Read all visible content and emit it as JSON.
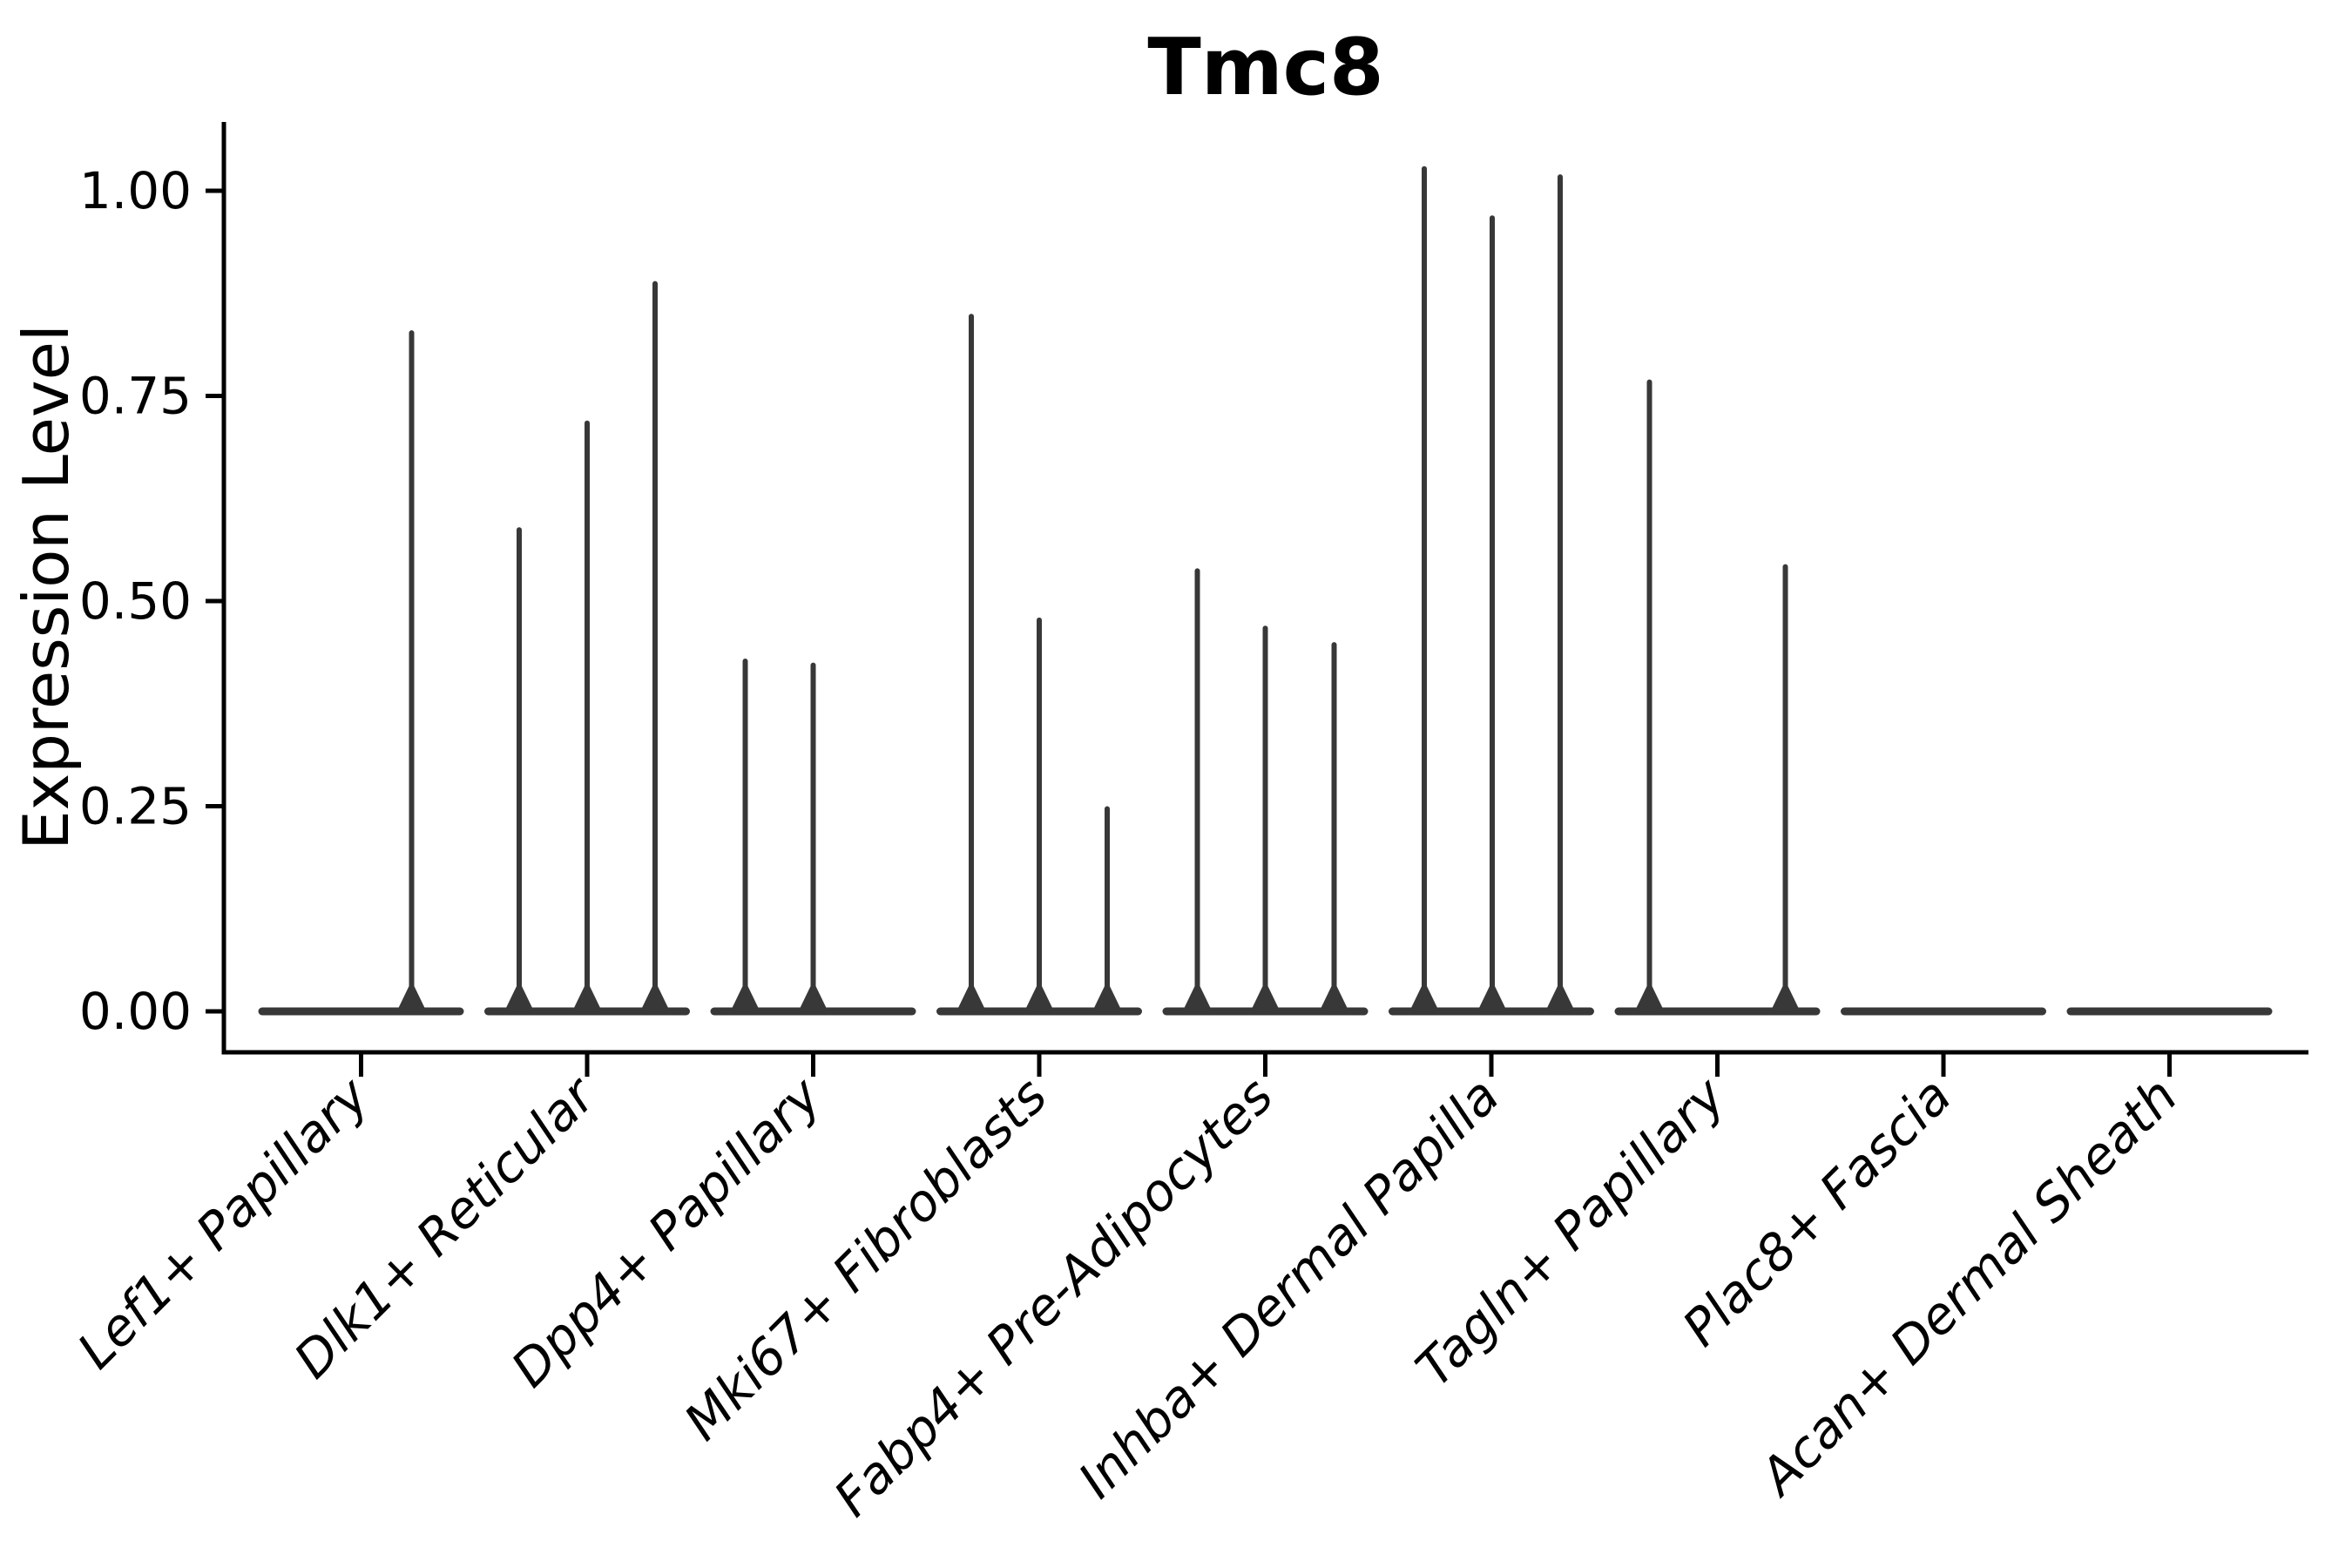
{
  "figure": {
    "title": "Tmc8",
    "y_axis_title": "Expression Level"
  },
  "chart_data": {
    "type": "violin",
    "title": "Tmc8",
    "xlabel": "",
    "ylabel": "Expression Level",
    "ylim": [
      -0.05,
      1.08
    ],
    "yticks": [
      0,
      0.25,
      0.5,
      0.75,
      1.0
    ],
    "ytick_labels": [
      "0.00",
      "0.25",
      "0.50",
      "0.75",
      "1.00"
    ],
    "grid": false,
    "legend": "none",
    "x_axis_style": {
      "label_rotation_deg": 45,
      "label_style": "italic"
    },
    "categories": [
      "Lef1+ Papillary",
      "Dlk1+ Reticular",
      "Dpp4+ Papillary",
      "Mki67+ Fibroblasts",
      "Fabp4+ Pre-Adipocytes",
      "Inhba+ Dermal Papilla",
      "Tagln+ Papillary",
      "Plac8+ Fascia",
      "Acan+ Dermal Sheath"
    ],
    "violins": [
      {
        "category": "Lef1+ Papillary",
        "baseline_value": 0,
        "spikes": [
          {
            "dx": 58,
            "max": 0.83
          }
        ]
      },
      {
        "category": "Dlk1+ Reticular",
        "baseline_value": 0,
        "spikes": [
          {
            "dx": -78,
            "max": 0.59
          },
          {
            "dx": 0,
            "max": 0.72
          },
          {
            "dx": 78,
            "max": 0.89
          }
        ]
      },
      {
        "category": "Dpp4+ Papillary",
        "baseline_value": 0,
        "spikes": [
          {
            "dx": -78,
            "max": 0.43
          },
          {
            "dx": 0,
            "max": 0.425
          }
        ]
      },
      {
        "category": "Mki67+ Fibroblasts",
        "baseline_value": 0,
        "spikes": [
          {
            "dx": -78,
            "max": 0.85
          },
          {
            "dx": 0,
            "max": 0.48
          },
          {
            "dx": 78,
            "max": 0.25
          }
        ]
      },
      {
        "category": "Fabp4+ Pre-Adipocytes",
        "baseline_value": 0,
        "spikes": [
          {
            "dx": -78,
            "max": 0.54
          },
          {
            "dx": 0,
            "max": 0.47
          },
          {
            "dx": 79,
            "max": 0.45
          }
        ]
      },
      {
        "category": "Inhba+ Dermal Papilla",
        "baseline_value": 0,
        "spikes": [
          {
            "dx": -77,
            "max": 1.03
          },
          {
            "dx": 1,
            "max": 0.97
          },
          {
            "dx": 79,
            "max": 1.02
          }
        ]
      },
      {
        "category": "Tagln+ Papillary",
        "baseline_value": 0,
        "spikes": [
          {
            "dx": -78,
            "max": 0.77
          },
          {
            "dx": 78,
            "max": 0.545
          }
        ]
      },
      {
        "category": "Plac8+ Fascia",
        "baseline_value": 0,
        "spikes": []
      },
      {
        "category": "Acan+ Dermal Sheath",
        "baseline_value": 0,
        "spikes": []
      }
    ],
    "colors": {
      "violin": "#383838",
      "axis": "#000000",
      "background": "#ffffff"
    }
  }
}
